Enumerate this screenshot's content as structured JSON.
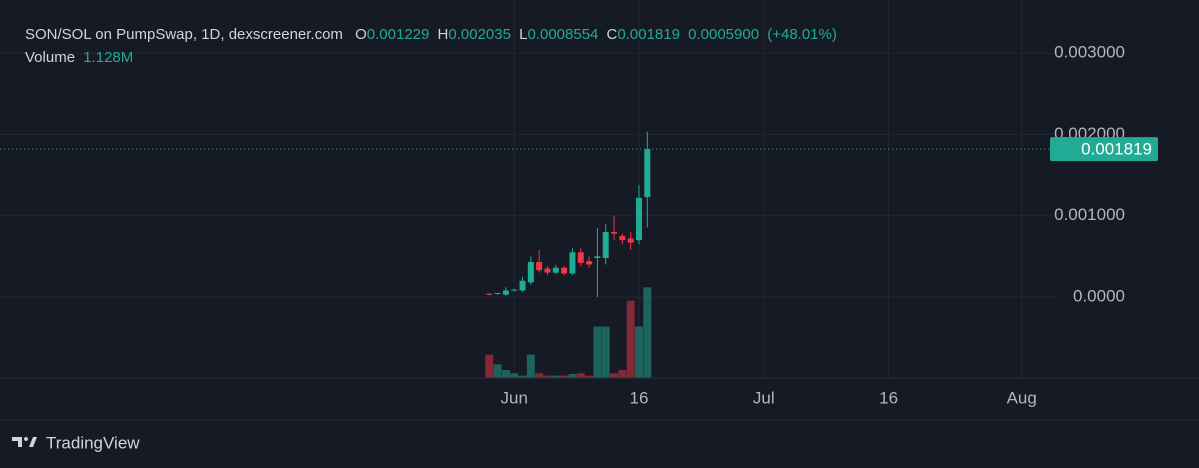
{
  "chart_data": {
    "type": "candlestick",
    "title": "SON/SOL on PumpSwap, 1D, dexscreener.com",
    "ohlc_labels": [
      "O",
      "H",
      "L",
      "C"
    ],
    "change": {
      "value": 0.00059,
      "label": "0.0005900"
    },
    "change_pct": {
      "value": 48.01,
      "label": "(+48.01%)"
    },
    "brand": "TradingView",
    "up_color": "#22ab94",
    "down_color": "#f23645",
    "grid": true,
    "x": [
      "05-29",
      "05-30",
      "05-31",
      "06-01",
      "06-02",
      "06-03",
      "06-04",
      "06-05",
      "06-06",
      "06-07",
      "06-08",
      "06-09",
      "06-10",
      "06-11",
      "06-12",
      "06-13",
      "06-14",
      "06-15",
      "06-16",
      "06-17"
    ],
    "open": [
      4e-05,
      4e-05,
      3e-05,
      8e-05,
      8e-05,
      0.00018,
      0.00043,
      0.00035,
      0.0003,
      0.00036,
      0.00029,
      0.00055,
      0.00044,
      0.00048,
      0.00048,
      0.0008,
      0.00075,
      0.00072,
      0.0007,
      0.001229
    ],
    "high": [
      5e-05,
      5e-05,
      0.00012,
      0.0001,
      0.00025,
      0.0005,
      0.00058,
      0.00038,
      0.0004,
      0.00038,
      0.0006,
      0.0006,
      0.0005,
      0.00085,
      0.0009,
      0.001,
      0.00078,
      0.0008,
      0.00138,
      0.002035
    ],
    "low": [
      2e-05,
      3e-05,
      1e-05,
      7e-05,
      6e-05,
      0.00015,
      0.0003,
      0.00027,
      0.00028,
      0.00027,
      0.00027,
      0.00038,
      0.00036,
      0.0,
      0.0004,
      0.0007,
      0.00065,
      0.00058,
      0.00065,
      0.0008554
    ],
    "close": [
      3e-05,
      5e-05,
      8e-05,
      9e-05,
      0.0002,
      0.00043,
      0.00033,
      0.0003,
      0.00036,
      0.00029,
      0.00055,
      0.00042,
      0.0004,
      0.0005,
      0.0008,
      0.00078,
      0.0007,
      0.00067,
      0.00122,
      0.001819
    ],
    "volume": {
      "name": "Volume",
      "last_label": "1.128M",
      "values": [
        290000,
        170000,
        100000,
        60000,
        30000,
        290000,
        60000,
        30000,
        30000,
        30000,
        50000,
        60000,
        30000,
        640000,
        640000,
        60000,
        100000,
        960000,
        640000,
        1128000
      ],
      "ylim": [
        0,
        4700000
      ]
    },
    "xlim": [
      "04-02",
      "08-05"
    ],
    "xticks": [
      {
        "value": "06-01",
        "label": "Jun"
      },
      {
        "value": "06-16",
        "label": "16"
      },
      {
        "value": "07-01",
        "label": "Jul"
      },
      {
        "value": "07-16",
        "label": "16"
      },
      {
        "value": "08-01",
        "label": "Aug"
      }
    ],
    "ylim": [
      -0.000996,
      0.003653
    ],
    "yticks": [
      {
        "value": 0,
        "label": "0.0000"
      },
      {
        "value": 0.001,
        "label": "0.001000"
      },
      {
        "value": 0.002,
        "label": "0.002000"
      },
      {
        "value": 0.003,
        "label": "0.003000"
      }
    ]
  }
}
